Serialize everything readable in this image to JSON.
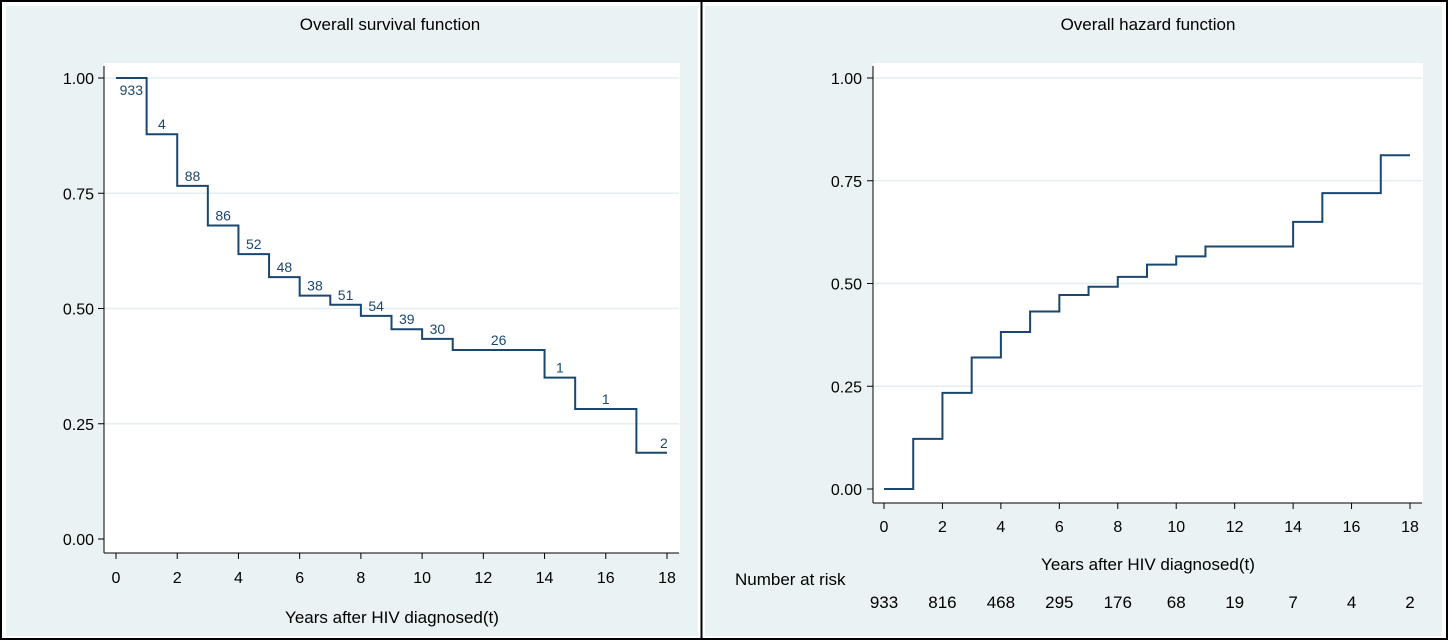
{
  "chart_data": [
    {
      "type": "line",
      "step": true,
      "title": "Overall survival function",
      "xlabel": "Years after HIV diagnosed(t)",
      "ylabel": "",
      "xlim": [
        0,
        18
      ],
      "ylim": [
        0,
        1
      ],
      "xticks": [
        "0",
        "2",
        "4",
        "6",
        "8",
        "10",
        "12",
        "14",
        "16",
        "18"
      ],
      "yticks": [
        "0.00",
        "0.25",
        "0.50",
        "0.75",
        "1.00"
      ],
      "grid": "horizontal",
      "series": [
        {
          "x": [
            0,
            1,
            2,
            3,
            4,
            5,
            6,
            7,
            8,
            9,
            10,
            11,
            14,
            15,
            17,
            18
          ],
          "y": [
            1.0,
            0.878,
            0.766,
            0.68,
            0.618,
            0.568,
            0.528,
            0.508,
            0.484,
            0.455,
            0.434,
            0.41,
            0.35,
            0.282,
            0.187,
            0.187
          ]
        }
      ],
      "annotations": [
        {
          "x": 0.5,
          "y": 1.0,
          "text": "933",
          "pos": "below"
        },
        {
          "x": 1.5,
          "y": 0.878,
          "text": "4",
          "pos": "above"
        },
        {
          "x": 2.5,
          "y": 0.766,
          "text": "88",
          "pos": "above"
        },
        {
          "x": 3.5,
          "y": 0.68,
          "text": "86",
          "pos": "above"
        },
        {
          "x": 4.5,
          "y": 0.618,
          "text": "52",
          "pos": "above"
        },
        {
          "x": 5.5,
          "y": 0.568,
          "text": "48",
          "pos": "above"
        },
        {
          "x": 6.5,
          "y": 0.528,
          "text": "38",
          "pos": "above"
        },
        {
          "x": 7.5,
          "y": 0.508,
          "text": "51",
          "pos": "above"
        },
        {
          "x": 8.5,
          "y": 0.484,
          "text": "54",
          "pos": "above"
        },
        {
          "x": 9.5,
          "y": 0.455,
          "text": "39",
          "pos": "above"
        },
        {
          "x": 10.5,
          "y": 0.434,
          "text": "30",
          "pos": "above"
        },
        {
          "x": 12.5,
          "y": 0.41,
          "text": "26",
          "pos": "above"
        },
        {
          "x": 14.5,
          "y": 0.35,
          "text": "1",
          "pos": "above"
        },
        {
          "x": 16.0,
          "y": 0.282,
          "text": "1",
          "pos": "above"
        },
        {
          "x": 17.9,
          "y": 0.187,
          "text": "2",
          "pos": "above"
        }
      ]
    },
    {
      "type": "line",
      "step": true,
      "title": "Overall hazard function",
      "xlabel": "Years after HIV diagnosed(t)",
      "ylabel": "",
      "xlim": [
        0,
        18
      ],
      "ylim": [
        0,
        1
      ],
      "xticks": [
        "0",
        "2",
        "4",
        "6",
        "8",
        "10",
        "12",
        "14",
        "16",
        "18"
      ],
      "yticks": [
        "0.00",
        "0.25",
        "0.50",
        "0.75",
        "1.00"
      ],
      "grid": "horizontal",
      "series": [
        {
          "x": [
            0,
            1,
            2,
            3,
            4,
            5,
            6,
            7,
            8,
            9,
            10,
            11,
            14,
            15,
            17,
            18
          ],
          "y": [
            0.0,
            0.122,
            0.234,
            0.32,
            0.382,
            0.432,
            0.472,
            0.492,
            0.516,
            0.546,
            0.566,
            0.59,
            0.65,
            0.72,
            0.812,
            0.812
          ]
        }
      ],
      "risk_table": {
        "label": "Number at risk",
        "x": [
          0,
          2,
          4,
          6,
          8,
          10,
          12,
          14,
          16,
          18
        ],
        "values": [
          "933",
          "816",
          "468",
          "295",
          "176",
          "68",
          "19",
          "7",
          "4",
          "2"
        ]
      }
    }
  ],
  "colors": {
    "panel_bg": "#eaf2f3",
    "plot_bg": "#ffffff",
    "grid": "#e3eef0",
    "line": "#1a476f",
    "text": "#000000"
  }
}
